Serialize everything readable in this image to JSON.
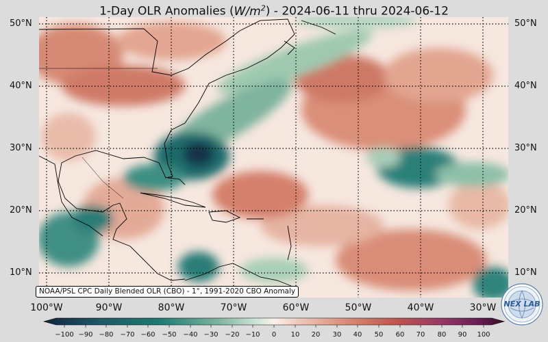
{
  "title": {
    "prefix": "1-Day OLR Anomalies (",
    "unit_main": "W/m",
    "unit_exp": "2",
    "suffix": ") - 2024-06-11 thru 2024-06-12"
  },
  "map": {
    "lat_labels": [
      "50°N",
      "40°N",
      "30°N",
      "20°N",
      "10°N"
    ],
    "lon_labels": [
      "100°W",
      "90°W",
      "80°W",
      "70°W",
      "60°W",
      "50°W",
      "40°W",
      "30°W"
    ],
    "credit": "NOAA/PSL CPC Daily Blended OLR (CBO) - 1°, 1991-2020 CBO Anomaly"
  },
  "colorbar": {
    "ticks": [
      "−100",
      "−90",
      "−80",
      "−70",
      "−60",
      "−50",
      "−40",
      "−30",
      "−20",
      "−10",
      "0",
      "10",
      "20",
      "30",
      "40",
      "50",
      "60",
      "70",
      "80",
      "90",
      "100"
    ],
    "colors": {
      "neg_strong": "#13243f",
      "neg_mid": "#1e7a72",
      "neg_light": "#a9cfb8",
      "zero": "#fbf1ec",
      "pos_light": "#e4a690",
      "pos_mid": "#c0584f",
      "pos_strong": "#3a0d2a"
    }
  },
  "logo": {
    "text": "NEX LAB",
    "icon": "globe-logo-icon"
  }
}
